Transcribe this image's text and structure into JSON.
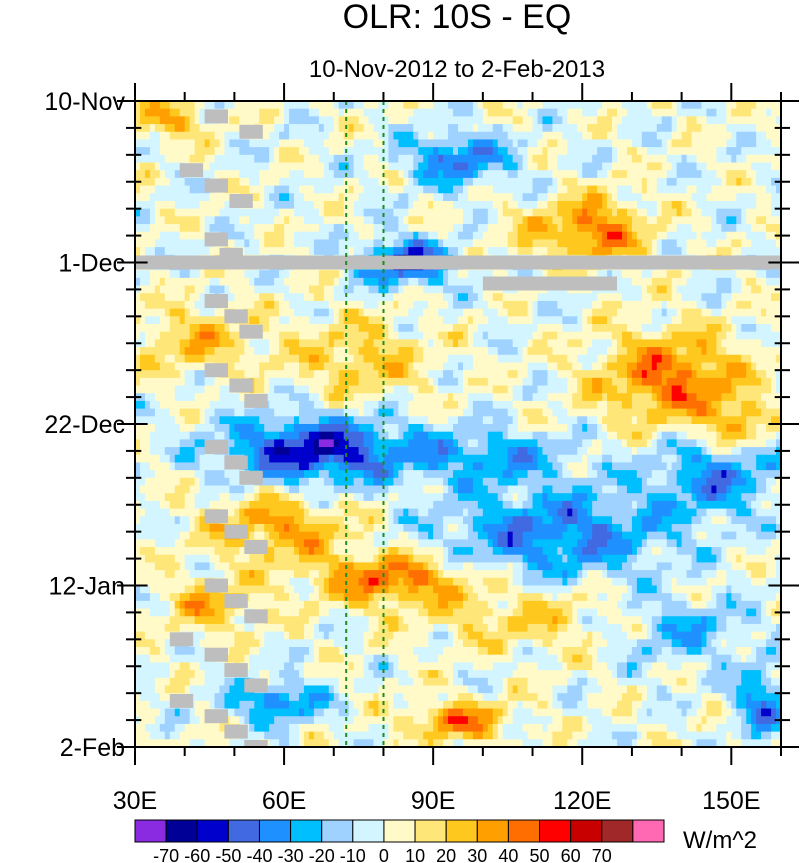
{
  "chart_data": {
    "type": "heatmap",
    "title": "OLR: 10S - EQ",
    "subtitle": "10-Nov-2012 to 2-Feb-2013",
    "xlabel": "",
    "ylabel": "",
    "x_range": [
      30,
      160
    ],
    "x_ticks": [
      {
        "value": 30,
        "label": "30E"
      },
      {
        "value": 60,
        "label": "60E"
      },
      {
        "value": 90,
        "label": "90E"
      },
      {
        "value": 120,
        "label": "120E"
      },
      {
        "value": 150,
        "label": "150E"
      }
    ],
    "y_range_days": [
      0,
      84
    ],
    "y_ticks": [
      {
        "day": 0,
        "label": "10-Nov"
      },
      {
        "day": 21,
        "label": "1-Dec"
      },
      {
        "day": 42,
        "label": "22-Dec"
      },
      {
        "day": 63,
        "label": "12-Jan"
      },
      {
        "day": 84,
        "label": "2-Feb"
      }
    ],
    "reference_lines_lon": [
      72.5,
      80
    ],
    "missing_row_day": 21,
    "colorbar": {
      "units": "W/m^2",
      "levels": [
        -70,
        -60,
        -50,
        -40,
        -30,
        -20,
        -10,
        0,
        10,
        20,
        30,
        40,
        50,
        60,
        70
      ],
      "colors": [
        "#8a2be2",
        "#000096",
        "#0000cd",
        "#4169e1",
        "#1e90ff",
        "#00bfff",
        "#a0d2ff",
        "#d2f5ff",
        "#fffac8",
        "#ffe678",
        "#ffc81e",
        "#ffa000",
        "#ff6e00",
        "#ff0000",
        "#c80000",
        "#a02828",
        "#ff69b4"
      ]
    },
    "missing_color": "#bebebe",
    "reference_line_color": "#1e8c1e"
  }
}
